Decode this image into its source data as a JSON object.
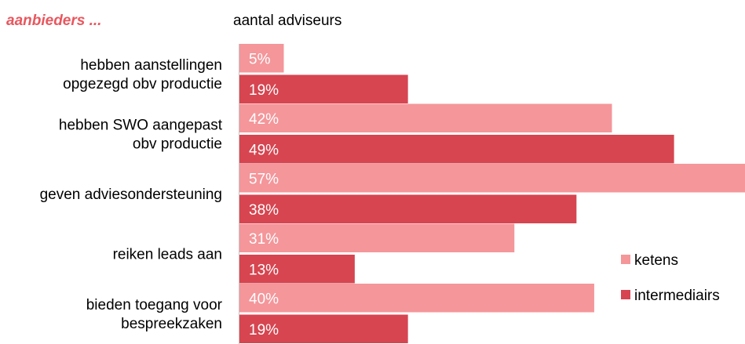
{
  "header": {
    "left_label": "aanbieders ...",
    "right_label": "aantal adviseurs"
  },
  "colors": {
    "ketens": "#f4969a",
    "intermediairs": "#d64550",
    "header_accent": "#e8575e",
    "axis": "#c8c8c8",
    "label_text": "#000000",
    "value_text": "#ffffff"
  },
  "chart_data": {
    "type": "bar",
    "orientation": "horizontal",
    "categories": [
      [
        "hebben aanstellingen",
        "opgezegd obv productie"
      ],
      [
        "hebben SWO aangepast",
        "obv productie"
      ],
      [
        "geven adviesondersteuning"
      ],
      [
        "reiken leads aan"
      ],
      [
        "bieden toegang voor",
        "bespreekzaken"
      ]
    ],
    "series": [
      {
        "name": "ketens",
        "values": [
          5,
          42,
          57,
          31,
          40
        ],
        "labels": [
          "5%",
          "42%",
          "57%",
          "31%",
          "40%"
        ]
      },
      {
        "name": "intermediairs",
        "values": [
          19,
          49,
          38,
          13,
          19
        ],
        "labels": [
          "19%",
          "49%",
          "38%",
          "13%",
          "19%"
        ]
      }
    ],
    "xlim": [
      0,
      57
    ],
    "legend_position": "right"
  }
}
